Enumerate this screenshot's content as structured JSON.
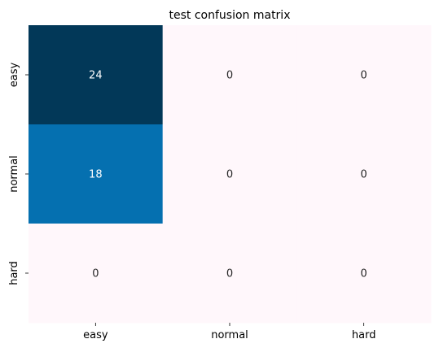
{
  "chart_data": {
    "type": "heatmap",
    "title": "test confusion matrix",
    "xlabel": "",
    "ylabel": "",
    "x_categories": [
      "easy",
      "normal",
      "hard"
    ],
    "y_categories": [
      "easy",
      "normal",
      "hard"
    ],
    "values": [
      [
        24,
        0,
        0
      ],
      [
        18,
        0,
        0
      ],
      [
        0,
        0,
        0
      ]
    ],
    "vmin": 0,
    "vmax": 24,
    "colorbar": false,
    "colors": {
      "low": "#fff7fb",
      "mid": "#0570b0",
      "high": "#023858",
      "annotation_dark_bg": "#ffffff",
      "annotation_light_bg": "#262626"
    }
  }
}
